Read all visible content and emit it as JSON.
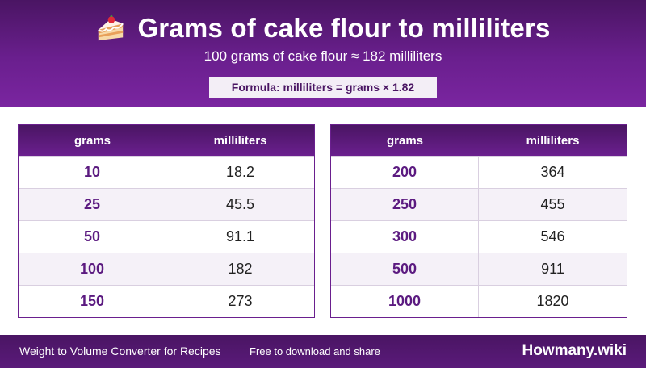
{
  "header": {
    "icon": "cake-slice-icon",
    "title": "Grams of cake flour to milliliters",
    "subtitle": "100 grams of cake flour ≈ 182 milliliters",
    "formula": "Formula: milliliters = grams × 1.82"
  },
  "tables": [
    {
      "headers": [
        "grams",
        "milliliters"
      ],
      "rows": [
        [
          "10",
          "18.2"
        ],
        [
          "25",
          "45.5"
        ],
        [
          "50",
          "91.1"
        ],
        [
          "100",
          "182"
        ],
        [
          "150",
          "273"
        ]
      ]
    },
    {
      "headers": [
        "grams",
        "milliliters"
      ],
      "rows": [
        [
          "200",
          "364"
        ],
        [
          "250",
          "455"
        ],
        [
          "300",
          "546"
        ],
        [
          "500",
          "911"
        ],
        [
          "1000",
          "1820"
        ]
      ]
    }
  ],
  "footer": {
    "left": "Weight to Volume Converter for Recipes",
    "middle": "Free to download and share",
    "brand": "Howmany.wiki"
  },
  "colors": {
    "accent": "#6a1f8e",
    "accent_dark": "#4a1563",
    "row_alt": "#f5f1f8"
  }
}
